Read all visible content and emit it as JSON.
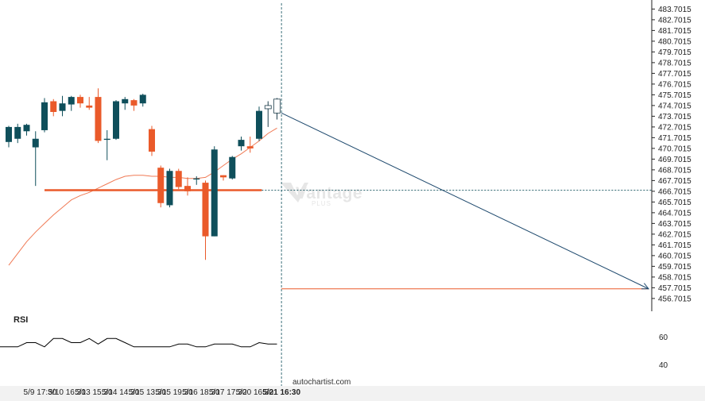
{
  "chart_data": [
    {
      "type": "candlestick",
      "y_ticks": [
        "483.7015",
        "482.7015",
        "481.7015",
        "480.7015",
        "479.7015",
        "478.7015",
        "477.7015",
        "476.7015",
        "475.7015",
        "474.7015",
        "473.7015",
        "472.7015",
        "471.7015",
        "470.7015",
        "469.7015",
        "468.7015",
        "467.7015",
        "466.7015",
        "465.7015",
        "464.7015",
        "463.7015",
        "462.7015",
        "461.7015",
        "460.7015",
        "459.7015",
        "458.7015",
        "457.7015",
        "456.7015"
      ],
      "ylim": [
        456.1,
        484.1
      ],
      "x_labels": [
        {
          "label": "5/9 17:30",
          "index": 3.5
        },
        {
          "label": "5/10 16:30",
          "index": 6.5
        },
        {
          "label": "5/13 15:30",
          "index": 9.5
        },
        {
          "label": "5/14 14:30",
          "index": 12.5
        },
        {
          "label": "5/15 13:30",
          "index": 15.5
        },
        {
          "label": "5/15 19:30",
          "index": 18.5
        },
        {
          "label": "5/16 18:30",
          "index": 21.5
        },
        {
          "label": "5/17 17:30",
          "index": 24.5
        },
        {
          "label": "5/20 16:30",
          "index": 27.5
        },
        {
          "label": "5/21 16:30",
          "index": 30.5
        }
      ],
      "highlight_x_label": "5/21 16:30",
      "n_slots": 33,
      "candles": [
        {
          "o": 471.3,
          "h": 472.8,
          "l": 470.8,
          "c": 472.7
        },
        {
          "o": 471.6,
          "h": 473.0,
          "l": 471.2,
          "c": 472.7
        },
        {
          "o": 472.3,
          "h": 473.0,
          "l": 471.9,
          "c": 472.9
        },
        {
          "o": 470.8,
          "h": 472.3,
          "l": 467.2,
          "c": 471.6
        },
        {
          "o": 472.4,
          "h": 475.4,
          "l": 472.2,
          "c": 475.0
        },
        {
          "o": 475.1,
          "h": 475.3,
          "l": 473.7,
          "c": 474.1
        },
        {
          "o": 474.2,
          "h": 475.6,
          "l": 473.7,
          "c": 474.9
        },
        {
          "o": 474.8,
          "h": 475.6,
          "l": 474.2,
          "c": 475.5
        },
        {
          "o": 475.5,
          "h": 475.7,
          "l": 474.5,
          "c": 474.9
        },
        {
          "o": 474.7,
          "h": 475.5,
          "l": 474.3,
          "c": 474.5
        },
        {
          "o": 475.5,
          "h": 476.3,
          "l": 471.2,
          "c": 471.4
        },
        {
          "o": 471.5,
          "h": 472.4,
          "l": 469.6,
          "c": 471.6
        },
        {
          "o": 471.6,
          "h": 475.2,
          "l": 471.5,
          "c": 475.1
        },
        {
          "o": 474.9,
          "h": 475.5,
          "l": 474.3,
          "c": 475.3
        },
        {
          "o": 475.2,
          "h": 475.3,
          "l": 474.2,
          "c": 474.7
        },
        {
          "o": 474.9,
          "h": 475.8,
          "l": 474.6,
          "c": 475.7
        },
        {
          "o": 472.5,
          "h": 472.8,
          "l": 470.0,
          "c": 470.4
        },
        {
          "o": 468.9,
          "h": 469.1,
          "l": 465.2,
          "c": 465.6
        },
        {
          "o": 465.4,
          "h": 468.8,
          "l": 465.2,
          "c": 468.6
        },
        {
          "o": 468.6,
          "h": 468.8,
          "l": 466.9,
          "c": 467.1
        },
        {
          "o": 467.2,
          "h": 468.0,
          "l": 466.3,
          "c": 466.7
        },
        {
          "o": 467.8,
          "h": 468.1,
          "l": 467.3,
          "c": 467.9
        },
        {
          "o": 467.5,
          "h": 467.7,
          "l": 460.3,
          "c": 462.5
        },
        {
          "o": 462.5,
          "h": 470.9,
          "l": 462.5,
          "c": 470.6
        },
        {
          "o": 468.2,
          "h": 468.2,
          "l": 467.7,
          "c": 468.0
        },
        {
          "o": 467.9,
          "h": 470.0,
          "l": 467.8,
          "c": 469.9
        },
        {
          "o": 470.9,
          "h": 471.8,
          "l": 470.5,
          "c": 471.5
        },
        {
          "o": 470.9,
          "h": 471.8,
          "l": 470.3,
          "c": 470.7
        },
        {
          "o": 471.6,
          "h": 474.6,
          "l": 471.4,
          "c": 474.2
        },
        {
          "o": 474.4,
          "h": 475.1,
          "l": 472.7,
          "c": 474.7
        },
        {
          "o": 475.3,
          "h": 475.4,
          "l": 473.4,
          "c": 474.0
        }
      ],
      "series": [
        {
          "name": "moving average",
          "values": [
            459.8,
            460.9,
            462.0,
            462.9,
            463.7,
            464.5,
            465.2,
            465.9,
            466.3,
            466.6,
            467.0,
            467.4,
            467.8,
            468.1,
            468.2,
            468.2,
            468.1,
            468.1,
            468.0,
            468.0,
            467.9,
            467.9,
            468.0,
            468.5,
            469.1,
            469.7,
            470.2,
            470.8,
            471.4,
            472.1,
            472.6
          ]
        },
        {
          "name": "RSI",
          "values": [
            55,
            55,
            58,
            58,
            55,
            61,
            61,
            58,
            58,
            61,
            57,
            61,
            61,
            58,
            55,
            55,
            55,
            55,
            55,
            57,
            57,
            55,
            55,
            57,
            57,
            57,
            55,
            55,
            58,
            57,
            57
          ]
        }
      ],
      "support_level": 466.8,
      "forecast_target": 457.6
    }
  ],
  "labels": {
    "rsi": "RSI",
    "rsi_ticks": [
      "60",
      "40"
    ],
    "credit": "autochartist.com",
    "watermark": "Vantage",
    "watermark_sub": "PLUS"
  },
  "colors": {
    "up": "#0f4f5b",
    "down": "#ea5a2a",
    "ma": "#f07a55",
    "support": "#ea5a2a",
    "rsi_line": "#000000",
    "vline": "#0f4f5b",
    "arrow": "#1f4a6e",
    "bottom_band": "#f2f2f2"
  }
}
